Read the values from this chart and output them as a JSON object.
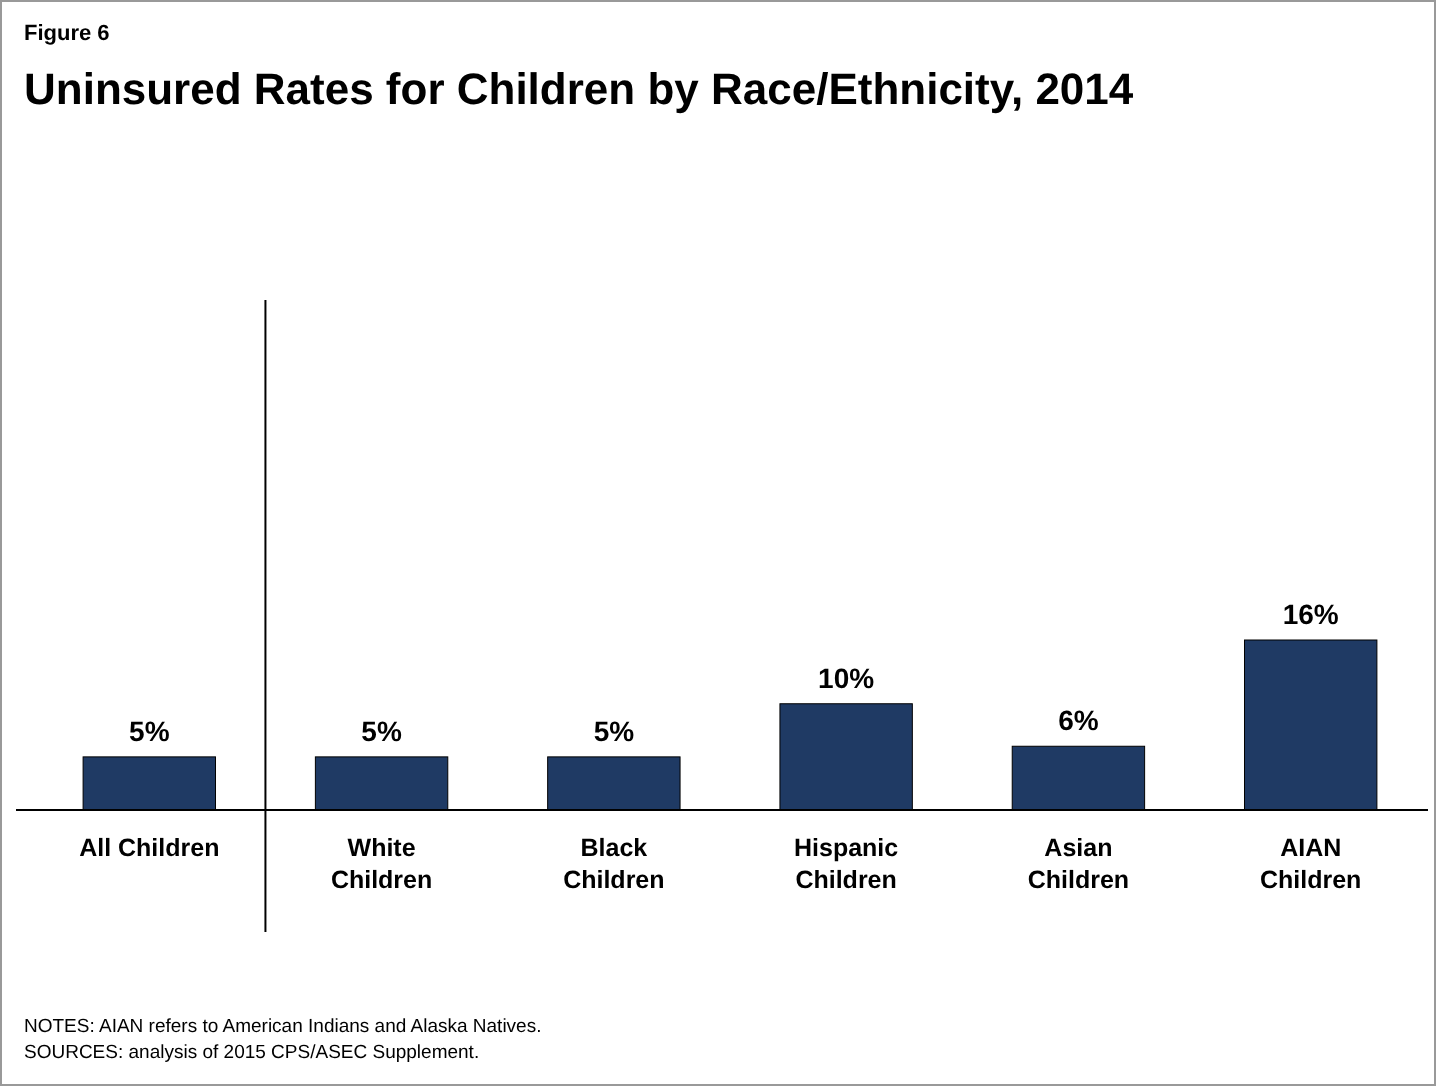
{
  "chart_data": {
    "type": "bar",
    "title": "Uninsured Rates for Children by Race/Ethnicity, 2014",
    "subtitle": "Figure 6",
    "categories": [
      "All Children",
      "White Children",
      "Black Children",
      "Hispanic Children",
      "Asian Children",
      "AIAN Children"
    ],
    "values": [
      5,
      5,
      5,
      10,
      6,
      16
    ],
    "color": "#1f3a64",
    "value_labels": [
      "5%",
      "5%",
      "5%",
      "10%",
      "6%",
      "16%"
    ],
    "annotations": [
      "NOTES: AIAN refers to American Indians and Alaska Natives.",
      "SOURCES: analysis of 2015 CPS/ASEC Supplement."
    ]
  }
}
